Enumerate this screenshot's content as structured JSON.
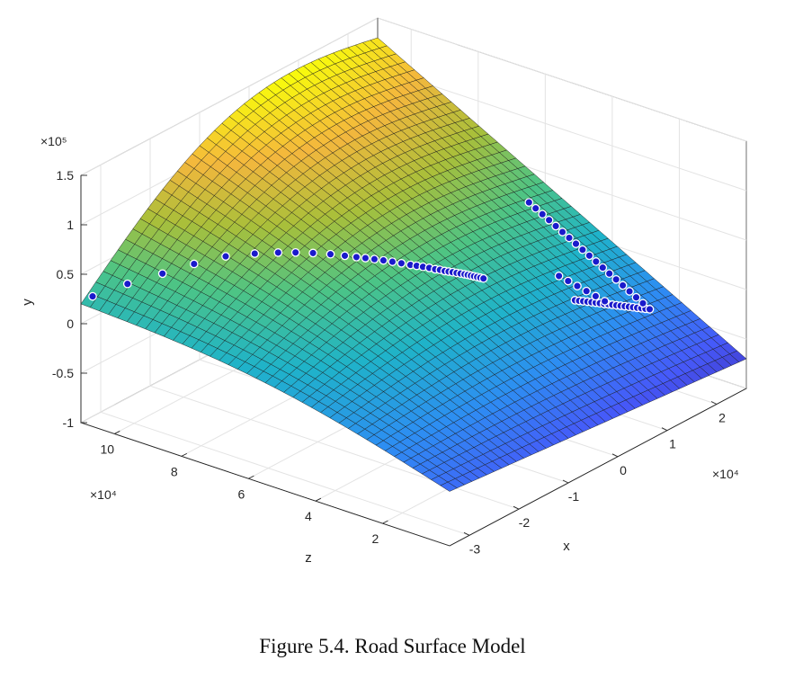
{
  "caption": "Figure 5.4.  Road Surface Model",
  "chart_data": {
    "type": "surface",
    "title": "",
    "xlabel": "x",
    "ylabel": "y",
    "zlabel": "z",
    "x_exponent": "×10⁴",
    "y_exponent": "×10⁵",
    "z_exponent": "×10⁴",
    "xlim": [
      -3.4,
      2.6
    ],
    "ylim": [
      -1,
      1.5
    ],
    "zlim": [
      0,
      11
    ],
    "x_ticks": [
      -3,
      -2,
      -1,
      0,
      1,
      2
    ],
    "y_ticks": [
      -1,
      -0.5,
      0,
      0.5,
      1,
      1.5
    ],
    "z_ticks": [
      2,
      4,
      6,
      8,
      10
    ],
    "x_tick_labels": [
      "-3",
      "-2",
      "-1",
      "0",
      "1",
      "2"
    ],
    "y_tick_labels": [
      "-1",
      "-0.5",
      "0",
      "0.5",
      "1",
      "1.5"
    ],
    "z_tick_labels": [
      "2",
      "4",
      "6",
      "8",
      "10"
    ],
    "grid": true,
    "colormap": [
      "#3e26a8",
      "#4659f9",
      "#2d8ef2",
      "#1fb3c9",
      "#4cc486",
      "#a9bf3a",
      "#f4b73d",
      "#f8fa0d"
    ],
    "marker_color": "#1a1acc",
    "marker_edge_color": "#ffffff",
    "surface_corner_heights": {
      "x_min_z_max": 0.2,
      "x_max_z_max": 1.3,
      "x_min_z_min": -0.45,
      "x_max_z_min": -0.35
    },
    "trajectory_points": [
      {
        "x": -3.3,
        "y": 0.02,
        "z": 10.8
      },
      {
        "x": -3.0,
        "y": 0.02,
        "z": 10.2
      },
      {
        "x": -2.7,
        "y": 0.02,
        "z": 9.6
      },
      {
        "x": -2.4,
        "y": 0.01,
        "z": 9.1
      },
      {
        "x": -2.1,
        "y": 0.0,
        "z": 8.6
      },
      {
        "x": -1.85,
        "y": 0.0,
        "z": 8.1
      },
      {
        "x": -1.65,
        "y": 0.0,
        "z": 7.7
      },
      {
        "x": -1.5,
        "y": -0.01,
        "z": 7.4
      },
      {
        "x": -1.35,
        "y": -0.01,
        "z": 7.1
      },
      {
        "x": -1.2,
        "y": -0.01,
        "z": 6.8
      },
      {
        "x": -1.08,
        "y": -0.01,
        "z": 6.55
      },
      {
        "x": -0.98,
        "y": -0.01,
        "z": 6.35
      },
      {
        "x": -0.9,
        "y": -0.01,
        "z": 6.2
      },
      {
        "x": -0.82,
        "y": -0.02,
        "z": 6.05
      },
      {
        "x": -0.74,
        "y": -0.02,
        "z": 5.9
      },
      {
        "x": -0.66,
        "y": -0.02,
        "z": 5.75
      },
      {
        "x": -0.58,
        "y": -0.02,
        "z": 5.6
      },
      {
        "x": -0.5,
        "y": -0.02,
        "z": 5.45
      },
      {
        "x": -0.44,
        "y": -0.02,
        "z": 5.35
      },
      {
        "x": -0.38,
        "y": -0.02,
        "z": 5.25
      },
      {
        "x": -0.32,
        "y": -0.02,
        "z": 5.15
      },
      {
        "x": -0.27,
        "y": -0.02,
        "z": 5.05
      },
      {
        "x": -0.22,
        "y": -0.02,
        "z": 4.98
      },
      {
        "x": -0.18,
        "y": -0.02,
        "z": 4.9
      },
      {
        "x": -0.14,
        "y": -0.02,
        "z": 4.84
      },
      {
        "x": -0.1,
        "y": -0.02,
        "z": 4.78
      },
      {
        "x": -0.06,
        "y": -0.02,
        "z": 4.72
      },
      {
        "x": -0.02,
        "y": -0.02,
        "z": 4.66
      },
      {
        "x": 0.02,
        "y": -0.02,
        "z": 4.6
      },
      {
        "x": 0.05,
        "y": -0.02,
        "z": 4.55
      },
      {
        "x": 0.08,
        "y": -0.02,
        "z": 4.5
      },
      {
        "x": 0.11,
        "y": -0.02,
        "z": 4.45
      },
      {
        "x": 0.14,
        "y": -0.02,
        "z": 4.4
      },
      {
        "x": 0.17,
        "y": -0.02,
        "z": 4.35
      },
      {
        "x": 0.2,
        "y": -0.02,
        "z": 4.3
      },
      {
        "x": 1.1,
        "y": -0.02,
        "z": 2.9
      },
      {
        "x": 1.15,
        "y": -0.02,
        "z": 2.85
      },
      {
        "x": 1.2,
        "y": -0.02,
        "z": 2.8
      },
      {
        "x": 1.25,
        "y": -0.02,
        "z": 2.75
      },
      {
        "x": 1.3,
        "y": -0.02,
        "z": 2.7
      },
      {
        "x": 1.35,
        "y": -0.02,
        "z": 2.65
      },
      {
        "x": 1.4,
        "y": -0.03,
        "z": 2.6
      },
      {
        "x": 1.45,
        "y": -0.03,
        "z": 2.55
      },
      {
        "x": 1.5,
        "y": -0.03,
        "z": 2.5
      },
      {
        "x": 1.55,
        "y": -0.03,
        "z": 2.45
      },
      {
        "x": 1.6,
        "y": -0.03,
        "z": 2.4
      },
      {
        "x": 1.65,
        "y": -0.03,
        "z": 2.35
      },
      {
        "x": 1.7,
        "y": -0.03,
        "z": 2.3
      },
      {
        "x": 1.75,
        "y": -0.03,
        "z": 2.25
      },
      {
        "x": 1.8,
        "y": -0.03,
        "z": 2.2
      },
      {
        "x": 1.85,
        "y": -0.03,
        "z": 2.15
      },
      {
        "x": 1.9,
        "y": -0.03,
        "z": 2.1
      },
      {
        "x": 1.95,
        "y": -0.03,
        "z": 2.05
      },
      {
        "x": 2.0,
        "y": -0.03,
        "z": 2.0
      },
      {
        "x": 2.0,
        "y": -0.01,
        "z": 2.2
      },
      {
        "x": 2.0,
        "y": 0.0,
        "z": 2.4
      },
      {
        "x": 2.0,
        "y": 0.02,
        "z": 2.6
      },
      {
        "x": 2.0,
        "y": 0.04,
        "z": 2.8
      },
      {
        "x": 2.0,
        "y": 0.06,
        "z": 3.0
      },
      {
        "x": 2.0,
        "y": 0.09,
        "z": 3.2
      },
      {
        "x": 2.0,
        "y": 0.12,
        "z": 3.4
      },
      {
        "x": 2.0,
        "y": 0.15,
        "z": 3.6
      },
      {
        "x": 2.0,
        "y": 0.18,
        "z": 3.8
      },
      {
        "x": 2.0,
        "y": 0.21,
        "z": 4.0
      },
      {
        "x": 2.0,
        "y": 0.24,
        "z": 4.2
      },
      {
        "x": 2.0,
        "y": 0.27,
        "z": 4.4
      },
      {
        "x": 2.0,
        "y": 0.3,
        "z": 4.6
      },
      {
        "x": 2.0,
        "y": 0.34,
        "z": 4.8
      },
      {
        "x": 2.0,
        "y": 0.38,
        "z": 5.0
      },
      {
        "x": 2.0,
        "y": 0.42,
        "z": 5.2
      },
      {
        "x": 2.0,
        "y": 0.46,
        "z": 5.4
      },
      {
        "x": 2.0,
        "y": 0.5,
        "z": 5.6
      },
      {
        "x": 1.5,
        "y": -0.01,
        "z": 2.6
      },
      {
        "x": 1.45,
        "y": 0.0,
        "z": 2.8
      },
      {
        "x": 1.4,
        "y": 0.01,
        "z": 3.0
      },
      {
        "x": 1.35,
        "y": 0.02,
        "z": 3.2
      },
      {
        "x": 1.3,
        "y": 0.03,
        "z": 3.4
      },
      {
        "x": 1.25,
        "y": 0.04,
        "z": 3.6
      }
    ]
  }
}
